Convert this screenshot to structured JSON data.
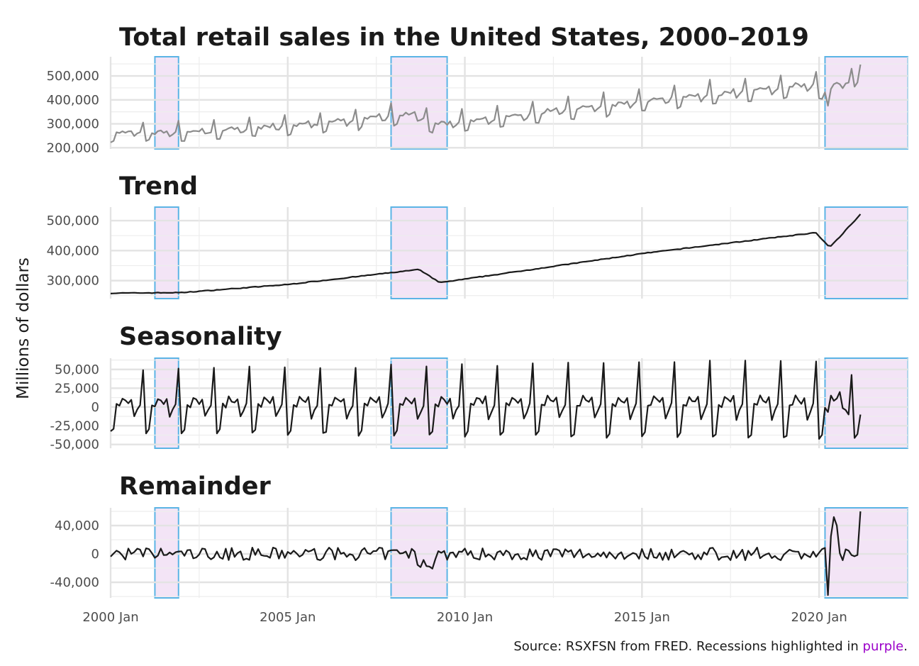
{
  "chart_data": [
    {
      "type": "line",
      "title": "Total retail sales in the United States, 2000–2019",
      "series": [
        {
          "name": "",
          "color": "#8c8c8c"
        }
      ],
      "yticks": [
        200000,
        300000,
        400000,
        500000
      ],
      "ytick_labels": [
        "200,000",
        "300,000",
        "400,000",
        "500,000"
      ],
      "ylim": [
        195000,
        580000
      ],
      "key_points": [
        [
          2000.0,
          215000
        ],
        [
          2005.0,
          290000
        ],
        [
          2010.0,
          310000
        ],
        [
          2015.0,
          390000
        ],
        [
          2019.9,
          460000
        ],
        [
          2020.3,
          380000
        ],
        [
          2020.9,
          495000
        ],
        [
          2021.2,
          558000
        ]
      ]
    },
    {
      "type": "line",
      "title": "Trend",
      "series": [
        {
          "name": "",
          "color": "#1a1a1a"
        }
      ],
      "yticks": [
        300000,
        400000,
        500000
      ],
      "ytick_labels": [
        "300,000",
        "400,000",
        "500,000"
      ],
      "ylim": [
        240000,
        545000
      ],
      "key_points": [
        [
          2000.0,
          258000
        ],
        [
          2002.0,
          260000
        ],
        [
          2005.0,
          287000
        ],
        [
          2008.7,
          337000
        ],
        [
          2009.3,
          293000
        ],
        [
          2010.0,
          305000
        ],
        [
          2015.0,
          390000
        ],
        [
          2019.9,
          460000
        ],
        [
          2020.3,
          410000
        ],
        [
          2021.2,
          525000
        ]
      ]
    },
    {
      "type": "line",
      "title": "Seasonality",
      "series": [
        {
          "name": "",
          "color": "#1a1a1a"
        }
      ],
      "yticks": [
        -50000,
        -25000,
        0,
        25000,
        50000
      ],
      "ytick_labels": [
        "-50,000",
        "-25,000",
        "0",
        "25,000",
        "50,000"
      ],
      "ylim": [
        -55000,
        65000
      ],
      "pattern": "strong annual cycle: December peak, January/February trough",
      "amplitude_range": [
        50000,
        62000
      ]
    },
    {
      "type": "line",
      "title": "Remainder",
      "series": [
        {
          "name": "",
          "color": "#1a1a1a"
        }
      ],
      "yticks": [
        -40000,
        0,
        40000
      ],
      "ytick_labels": [
        "-40,000",
        "0",
        "40,000"
      ],
      "ylim": [
        -62000,
        65000
      ],
      "key_points": [
        [
          2008.9,
          -26000
        ],
        [
          2020.3,
          -58000
        ],
        [
          2020.5,
          52000
        ],
        [
          2021.2,
          60000
        ]
      ]
    }
  ],
  "shared": {
    "ylabel": "Millions of dollars",
    "x_range": [
      2000.0,
      2022.5
    ],
    "xticks": [
      2000,
      2005,
      2010,
      2015,
      2020
    ],
    "xtick_labels": [
      "2000 Jan",
      "2005 Jan",
      "2010 Jan",
      "2015 Jan",
      "2020 Jan"
    ],
    "recessions": [
      [
        2001.25,
        2001.917
      ],
      [
        2007.917,
        2009.5
      ],
      [
        2020.167,
        2022.5
      ]
    ],
    "recession_fill": "#f3e4f6",
    "recession_border": "#5bb4e5",
    "data_end": 2021.2,
    "grid": "on"
  },
  "caption": {
    "before": "Source: RSXFSN from FRED. Recessions highlighted in ",
    "highlight": "purple",
    "after": ".",
    "highlight_color": "#9b00c9"
  }
}
